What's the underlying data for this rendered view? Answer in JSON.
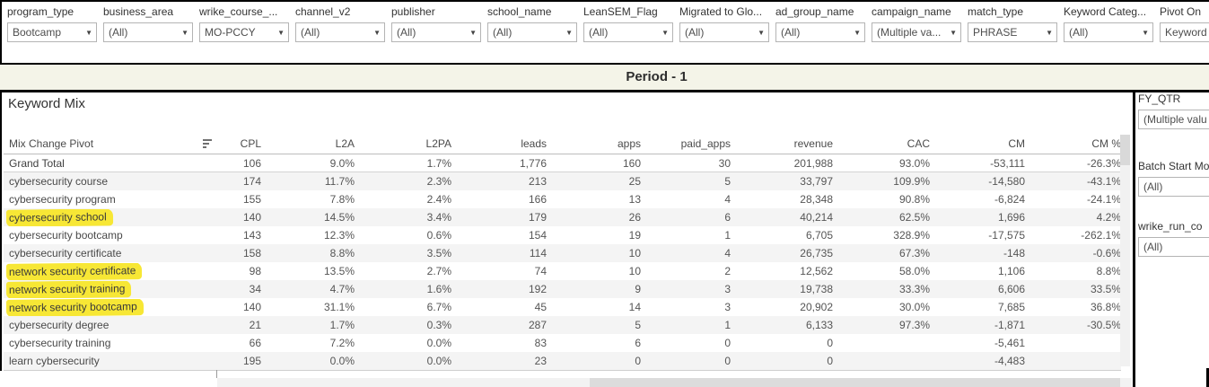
{
  "filters": [
    {
      "label": "program_type",
      "value": "Bootcamp"
    },
    {
      "label": "business_area",
      "value": "(All)"
    },
    {
      "label": "wrike_course_...",
      "value": "MO-PCCY"
    },
    {
      "label": "channel_v2",
      "value": "(All)"
    },
    {
      "label": "publisher",
      "value": "(All)"
    },
    {
      "label": "school_name",
      "value": "(All)"
    },
    {
      "label": "LeanSEM_Flag",
      "value": "(All)"
    },
    {
      "label": "Migrated to Glo...",
      "value": "(All)"
    },
    {
      "label": "ad_group_name",
      "value": "(All)"
    },
    {
      "label": "campaign_name",
      "value": "(Multiple va..."
    },
    {
      "label": "match_type",
      "value": "PHRASE"
    },
    {
      "label": "Keyword Categ...",
      "value": "(All)"
    },
    {
      "label": "Pivot On",
      "value": "Keyword"
    }
  ],
  "period": {
    "title": "Period - 1"
  },
  "section": {
    "title": "Keyword Mix"
  },
  "table": {
    "row_header": "Mix Change Pivot",
    "sort_icon": "sort-descending-icon",
    "columns": [
      "CPL",
      "L2A",
      "L2PA",
      "leads",
      "apps",
      "paid_apps",
      "revenue",
      "CAC",
      "CM",
      "CM %"
    ],
    "grand_total": {
      "label": "Grand Total",
      "values": [
        "106",
        "9.0%",
        "1.7%",
        "1,776",
        "160",
        "30",
        "201,988",
        "93.0%",
        "-53,111",
        "-26.3%"
      ]
    },
    "rows": [
      {
        "label": "cybersecurity course",
        "highlighted": false,
        "values": [
          "174",
          "11.7%",
          "2.3%",
          "213",
          "25",
          "5",
          "33,797",
          "109.9%",
          "-14,580",
          "-43.1%"
        ]
      },
      {
        "label": "cybersecurity program",
        "highlighted": false,
        "values": [
          "155",
          "7.8%",
          "2.4%",
          "166",
          "13",
          "4",
          "28,348",
          "90.8%",
          "-6,824",
          "-24.1%"
        ]
      },
      {
        "label": "cybersecurity school",
        "highlighted": true,
        "values": [
          "140",
          "14.5%",
          "3.4%",
          "179",
          "26",
          "6",
          "40,214",
          "62.5%",
          "1,696",
          "4.2%"
        ]
      },
      {
        "label": "cybersecurity bootcamp",
        "highlighted": false,
        "values": [
          "143",
          "12.3%",
          "0.6%",
          "154",
          "19",
          "1",
          "6,705",
          "328.9%",
          "-17,575",
          "-262.1%"
        ]
      },
      {
        "label": "cybersecurity certificate",
        "highlighted": false,
        "values": [
          "158",
          "8.8%",
          "3.5%",
          "114",
          "10",
          "4",
          "26,735",
          "67.3%",
          "-148",
          "-0.6%"
        ]
      },
      {
        "label": "network security certificate",
        "highlighted": true,
        "values": [
          "98",
          "13.5%",
          "2.7%",
          "74",
          "10",
          "2",
          "12,562",
          "58.0%",
          "1,106",
          "8.8%"
        ]
      },
      {
        "label": "network security training",
        "highlighted": true,
        "values": [
          "34",
          "4.7%",
          "1.6%",
          "192",
          "9",
          "3",
          "19,738",
          "33.3%",
          "6,606",
          "33.5%"
        ]
      },
      {
        "label": "network security bootcamp",
        "highlighted": true,
        "values": [
          "140",
          "31.1%",
          "6.7%",
          "45",
          "14",
          "3",
          "20,902",
          "30.0%",
          "7,685",
          "36.8%"
        ]
      },
      {
        "label": "cybersecurity degree",
        "highlighted": false,
        "values": [
          "21",
          "1.7%",
          "0.3%",
          "287",
          "5",
          "1",
          "6,133",
          "97.3%",
          "-1,871",
          "-30.5%"
        ]
      },
      {
        "label": "cybersecurity training",
        "highlighted": false,
        "values": [
          "66",
          "7.2%",
          "0.0%",
          "83",
          "6",
          "0",
          "0",
          "",
          "-5,461",
          ""
        ]
      },
      {
        "label": "learn cybersecurity",
        "highlighted": false,
        "values": [
          "195",
          "0.0%",
          "0.0%",
          "23",
          "0",
          "0",
          "0",
          "",
          "-4,483",
          ""
        ]
      }
    ]
  },
  "side_filters": [
    {
      "label": "FY_QTR",
      "value": "(Multiple valu"
    },
    {
      "label": "Batch Start Mo",
      "value": "(All)"
    },
    {
      "label": "wrike_run_co",
      "value": "(All)"
    }
  ],
  "colors": {
    "highlight": "#f7e735",
    "band_background": "#f4f4e8",
    "row_stripe": "#f4f4f4",
    "border_black": "#000000"
  }
}
